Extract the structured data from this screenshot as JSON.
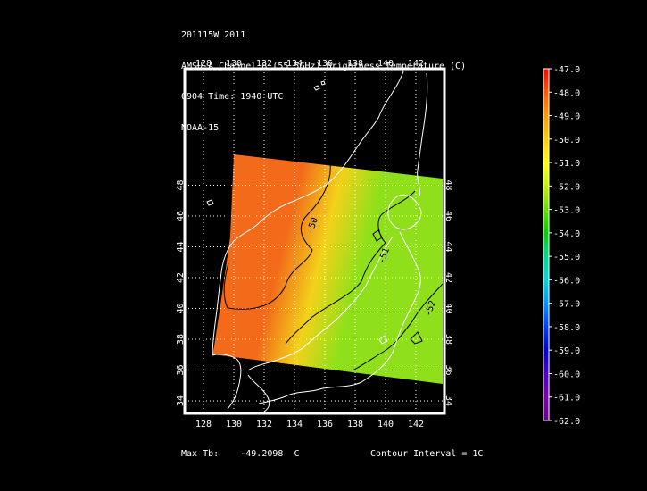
{
  "header": {
    "line1": "201115W 2011",
    "line2": "AMSU-A Channel 8 (55.5GHz) Brightness Temperature (C)",
    "line3": "0904 Time: 1940 UTC",
    "line4": "NOAA-15"
  },
  "map": {
    "lon_labels": [
      "128",
      "130",
      "132",
      "134",
      "136",
      "138",
      "140",
      "142"
    ],
    "lat_labels": [
      "34",
      "36",
      "38",
      "40",
      "42",
      "44",
      "46",
      "48"
    ],
    "contour_labels": [
      "-50",
      "-51",
      "-52"
    ],
    "colors": {
      "orange": "#f26a1a",
      "yellow": "#f2d21a",
      "green": "#8fe01a",
      "coast": "#ffffff",
      "contour": "#000000"
    }
  },
  "colorbar": {
    "labels": [
      "-47.0",
      "-48.0",
      "-49.0",
      "-50.0",
      "-51.0",
      "-52.0",
      "-53.0",
      "-54.0",
      "-55.0",
      "-56.0",
      "-57.0",
      "-58.0",
      "-59.0",
      "-60.0",
      "-61.0",
      "-62.0"
    ],
    "colors": [
      "#ff0000",
      "#ff5a00",
      "#ff9a00",
      "#ffcc00",
      "#ffff00",
      "#c8f000",
      "#60e000",
      "#00d000",
      "#00d890",
      "#00d8d8",
      "#0096ff",
      "#0040ff",
      "#0000d0",
      "#5000c8",
      "#7a00b0",
      "#660090"
    ]
  },
  "footer": {
    "max_tb_label": "Max Tb:",
    "max_tb_value": "-49.2098",
    "max_tb_unit": "C",
    "contour_interval": "Contour Interval = 1C"
  }
}
